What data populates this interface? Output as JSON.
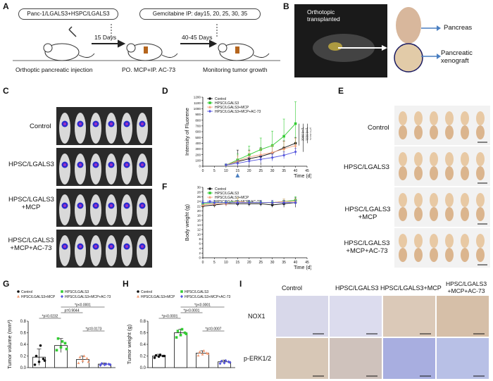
{
  "panels": {
    "A": "A",
    "B": "B",
    "C": "C",
    "D": "D",
    "E": "E",
    "F": "F",
    "G": "G",
    "H": "H",
    "I": "I"
  },
  "panelA": {
    "cells": "Panc-1/LGALS3+HSPC/LGALS3",
    "ip": "Gemcitabine IP: day15, 20, 25, 30, 35",
    "arrow1": "15 Days",
    "arrow2": "40-45 Days",
    "step1": "Orthoptic pancreatic injection",
    "step2": "PO. MCP+IP. AC-73",
    "step3": "Monitoring tumor growth"
  },
  "panelB": {
    "orthotopic": "Orthotopic transplanted",
    "pancreas": "Pancreas",
    "xenograft": "Pancreatic xenograft"
  },
  "groups": [
    "Control",
    "HPSC/LGALS3",
    "HPSC/LGALS3 +MCP",
    "HPSC/LGALS3 +MCP+AC-73"
  ],
  "colors": {
    "control": "#111111",
    "hpsc": "#33cc33",
    "mcp": "#f4a07a",
    "ac73": "#5555dd",
    "arrow": "#4a7fc1"
  },
  "chart_data": [
    {
      "id": "D",
      "type": "line",
      "ylabel": "Intensity of Fluorene",
      "xlabel": "Time (d)",
      "xlim": [
        0,
        45
      ],
      "ylim": [
        0,
        1200
      ],
      "xticks": [
        0,
        5,
        10,
        15,
        20,
        25,
        30,
        35,
        40,
        45
      ],
      "yticks": [
        0,
        100,
        200,
        300,
        400,
        500,
        600,
        700,
        800,
        900,
        1000,
        1100,
        1200
      ],
      "x": [
        10,
        15,
        20,
        25,
        30,
        35,
        40
      ],
      "series": [
        {
          "name": "Control",
          "values": [
            20,
            80,
            130,
            170,
            230,
            320,
            400
          ],
          "err": [
            20,
            200,
            150,
            150,
            120,
            120,
            100
          ]
        },
        {
          "name": "HPSC/LGALS3",
          "values": [
            20,
            110,
            200,
            290,
            360,
            520,
            740
          ],
          "err": [
            20,
            100,
            150,
            200,
            250,
            300,
            380
          ]
        },
        {
          "name": "HPSC/LGALS3+MCP",
          "values": [
            20,
            90,
            160,
            200,
            240,
            300,
            360
          ],
          "err": [
            20,
            90,
            100,
            100,
            120,
            130,
            120
          ]
        },
        {
          "name": "HPSC/LGALS3+MCP+AC-73",
          "values": [
            20,
            50,
            90,
            120,
            150,
            190,
            250
          ],
          "err": [
            20,
            50,
            60,
            60,
            60,
            60,
            60
          ]
        }
      ],
      "annotations": [
        "*p=0.0002",
        "*p=0.0221",
        "p=0.0261"
      ]
    },
    {
      "id": "F",
      "type": "line",
      "ylabel": "Body weight (g)",
      "xlabel": "Time (d)",
      "xlim": [
        0,
        45
      ],
      "ylim": [
        0,
        30
      ],
      "xticks": [
        0,
        5,
        10,
        15,
        20,
        25,
        30,
        35,
        40,
        45
      ],
      "yticks": [
        0,
        2,
        4,
        6,
        8,
        10,
        12,
        14,
        16,
        18,
        20,
        22,
        24,
        26,
        28,
        30
      ],
      "x": [
        0,
        5,
        10,
        15,
        20,
        25,
        30,
        35,
        40
      ],
      "series": [
        {
          "name": "Control",
          "values": [
            22,
            22.5,
            23,
            23,
            23,
            23,
            22.5,
            23,
            23.5
          ],
          "err": [
            1,
            1,
            1,
            1,
            1,
            1,
            1,
            1.5,
            2
          ]
        },
        {
          "name": "HPSC/LGALS3",
          "values": [
            23,
            23.5,
            23.5,
            24,
            23.5,
            23.5,
            23.5,
            24,
            24.5
          ],
          "err": [
            1,
            1,
            1,
            1.5,
            1,
            1,
            1,
            1,
            1.5
          ]
        },
        {
          "name": "HPSC/LGALS3+MCP",
          "values": [
            22.5,
            23,
            23,
            24,
            23.5,
            23.5,
            23.5,
            24,
            24
          ],
          "err": [
            1,
            1,
            1,
            1.5,
            1,
            1,
            1,
            1,
            1
          ]
        },
        {
          "name": "HPSC/LGALS3+MCP+AC-73",
          "values": [
            23.5,
            23.5,
            23.5,
            23.5,
            23.5,
            23.5,
            23.5,
            23.5,
            23.5
          ],
          "err": [
            1,
            1,
            1,
            1,
            1,
            1,
            1,
            1,
            1
          ]
        }
      ]
    },
    {
      "id": "G",
      "type": "bar",
      "ylabel": "Tumor volume (mm³)",
      "ylim": [
        0,
        0.8
      ],
      "yticks": [
        0.0,
        0.2,
        0.4,
        0.6,
        0.8
      ],
      "categories": [
        "Control",
        "HPSC/LGALS3",
        "HPSC/LGALS3+MCP",
        "HPSC/LGALS3+MCP+AC-73"
      ],
      "values": [
        0.18,
        0.38,
        0.14,
        0.06
      ],
      "err": [
        0.14,
        0.12,
        0.06,
        0.02
      ],
      "points": [
        [
          0.05,
          0.1,
          0.15,
          0.2,
          0.38,
          0.12
        ],
        [
          0.3,
          0.35,
          0.42,
          0.5,
          0.45,
          0.32
        ],
        [
          0.08,
          0.12,
          0.16,
          0.18,
          0.2,
          0.1
        ],
        [
          0.04,
          0.05,
          0.06,
          0.07,
          0.06,
          0.05
        ]
      ],
      "annotations": [
        "*p=0.0232",
        "p=0.9044",
        "*p<0.0001",
        "*p=0.0173"
      ]
    },
    {
      "id": "H",
      "type": "bar",
      "ylabel": "Tumor weight (g)",
      "ylim": [
        0,
        0.8
      ],
      "yticks": [
        0.0,
        0.2,
        0.4,
        0.6,
        0.8
      ],
      "categories": [
        "Control",
        "HPSC/LGALS3",
        "HPSC/LGALS3+MCP",
        "HPSC/LGALS3+MCP+AC-73"
      ],
      "values": [
        0.2,
        0.6,
        0.25,
        0.1
      ],
      "err": [
        0.03,
        0.06,
        0.04,
        0.03
      ],
      "points": [
        [
          0.17,
          0.19,
          0.2,
          0.21,
          0.22,
          0.2
        ],
        [
          0.52,
          0.56,
          0.6,
          0.63,
          0.66,
          0.58
        ],
        [
          0.21,
          0.23,
          0.25,
          0.27,
          0.29,
          0.24
        ],
        [
          0.07,
          0.08,
          0.1,
          0.11,
          0.12,
          0.09
        ]
      ],
      "annotations": [
        "*p<0.0001",
        "*p<0.0001",
        "*p<0.0001",
        "*p=0.0007"
      ]
    }
  ],
  "panelI": {
    "cols": [
      "Control",
      "HPSC/LGALS3",
      "HPSC/LGALS3+MCP",
      "HPSC/LGALS3 +MCP+AC-73"
    ],
    "rows": [
      "NOX1",
      "p-ERK1/2"
    ]
  }
}
